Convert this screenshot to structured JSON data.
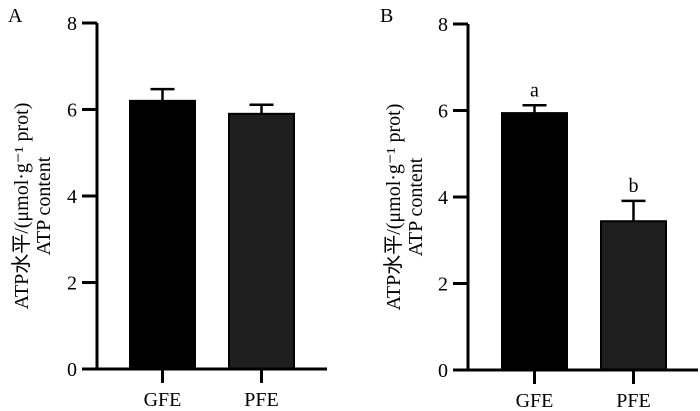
{
  "chart_data": [
    {
      "type": "bar",
      "panel_label": "A",
      "categories": [
        "GFE",
        "PFE"
      ],
      "values": [
        6.2,
        5.9
      ],
      "error": [
        0.27,
        0.21
      ],
      "bar_colors": [
        "#000000",
        "#1e1e1e"
      ],
      "significance_labels": [
        "",
        ""
      ],
      "ylabel_line1": "ATP水平/(μmol·g⁻¹ prot)",
      "ylabel_line2": "ATP content",
      "ylim": [
        0,
        8
      ],
      "yticks": [
        "0",
        "2",
        "4",
        "6",
        "8"
      ],
      "grid": false
    },
    {
      "type": "bar",
      "panel_label": "B",
      "categories": [
        "GFE",
        "PFE"
      ],
      "values": [
        5.94,
        3.44
      ],
      "error": [
        0.18,
        0.47
      ],
      "bar_colors": [
        "#000000",
        "#1e1e1e"
      ],
      "significance_labels": [
        "a",
        "b"
      ],
      "ylabel_line1": "ATP水平/(μmol·g⁻¹ prot)",
      "ylabel_line2": "ATP content",
      "ylim": [
        0,
        8
      ],
      "yticks": [
        "0",
        "2",
        "4",
        "6",
        "8"
      ],
      "grid": false
    }
  ]
}
